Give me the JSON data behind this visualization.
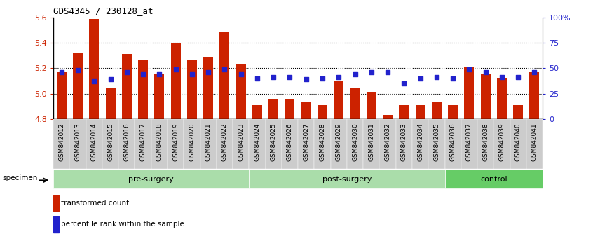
{
  "title": "GDS4345 / 230128_at",
  "categories": [
    "GSM842012",
    "GSM842013",
    "GSM842014",
    "GSM842015",
    "GSM842016",
    "GSM842017",
    "GSM842018",
    "GSM842019",
    "GSM842020",
    "GSM842021",
    "GSM842022",
    "GSM842023",
    "GSM842024",
    "GSM842025",
    "GSM842026",
    "GSM842027",
    "GSM842028",
    "GSM842029",
    "GSM842030",
    "GSM842031",
    "GSM842032",
    "GSM842033",
    "GSM842034",
    "GSM842035",
    "GSM842036",
    "GSM842037",
    "GSM842038",
    "GSM842039",
    "GSM842040",
    "GSM842041"
  ],
  "red_values": [
    5.17,
    5.32,
    5.59,
    5.04,
    5.31,
    5.27,
    5.16,
    5.4,
    5.27,
    5.29,
    5.49,
    5.23,
    4.91,
    4.96,
    4.96,
    4.94,
    4.91,
    5.1,
    5.05,
    5.01,
    4.83,
    4.91,
    4.91,
    4.94,
    4.91,
    5.21,
    5.16,
    5.12,
    4.91,
    5.17
  ],
  "blue_values": [
    46,
    48,
    37,
    39,
    46,
    44,
    44,
    49,
    44,
    46,
    49,
    44,
    40,
    41,
    41,
    39,
    40,
    41,
    44,
    46,
    46,
    35,
    40,
    41,
    40,
    49,
    46,
    41,
    41,
    46
  ],
  "group_boundaries": [
    0,
    12,
    24,
    30
  ],
  "group_labels": [
    "pre-surgery",
    "post-surgery",
    "control"
  ],
  "group_colors": [
    "#aaddaa",
    "#aaddaa",
    "#66cc66"
  ],
  "ylim_left": [
    4.8,
    5.6
  ],
  "ylim_right": [
    0,
    100
  ],
  "yticks_left": [
    4.8,
    5.0,
    5.2,
    5.4,
    5.6
  ],
  "yticks_right": [
    0,
    25,
    50,
    75,
    100
  ],
  "ytick_labels_right": [
    "0",
    "25",
    "50",
    "75",
    "100%"
  ],
  "bar_color": "#cc2200",
  "dot_color": "#2222cc",
  "bg_color": "#ffffff",
  "bar_width": 0.6,
  "legend_items": [
    {
      "label": "transformed count",
      "color": "#cc2200"
    },
    {
      "label": "percentile rank within the sample",
      "color": "#2222cc"
    }
  ]
}
